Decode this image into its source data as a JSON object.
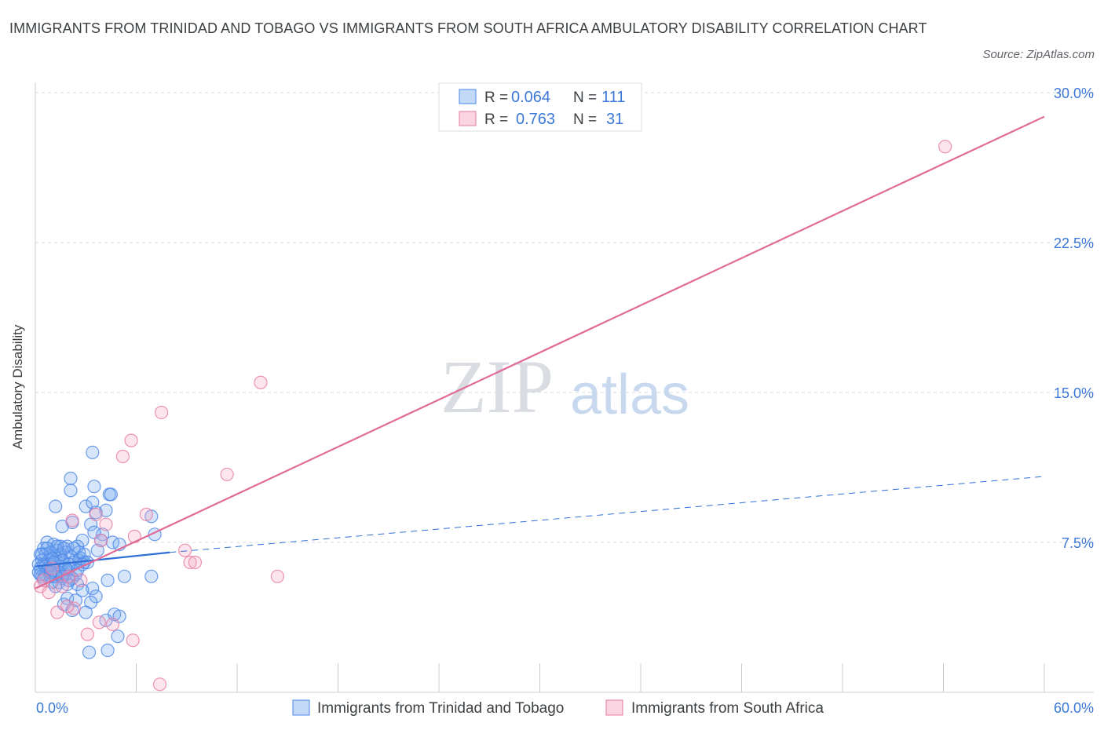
{
  "header": {
    "title": "IMMIGRANTS FROM TRINIDAD AND TOBAGO VS IMMIGRANTS FROM SOUTH AFRICA AMBULATORY DISABILITY CORRELATION CHART",
    "source": "Source: ZipAtlas.com"
  },
  "watermark": {
    "zip": "ZIP",
    "atlas": "atlas"
  },
  "colors": {
    "blue": "#4a86e8",
    "blue_fill": "rgba(120,170,240,0.30)",
    "blue_line": "#2f6fd6",
    "pink": "#e67ba0",
    "pink_fill": "rgba(245,170,195,0.30)",
    "pink_line": "#e06b97",
    "tick_label": "#3c78d8",
    "grid": "#d5d9de"
  },
  "chart_data": {
    "type": "scatter",
    "xlabel": "",
    "ylabel": "Ambulatory Disability",
    "xlim": [
      0,
      60
    ],
    "ylim": [
      0,
      30
    ],
    "x_tick_labels": [
      {
        "v": 0,
        "label": "0.0%"
      },
      {
        "v": 60,
        "label": "60.0%"
      }
    ],
    "x_minor_ticks": [
      6,
      12,
      18,
      24,
      30,
      36,
      42,
      48,
      54,
      60
    ],
    "y_ticks": [
      {
        "v": 7.5,
        "label": "7.5%"
      },
      {
        "v": 15,
        "label": "15.0%"
      },
      {
        "v": 22.5,
        "label": "22.5%"
      },
      {
        "v": 30,
        "label": "30.0%"
      }
    ],
    "legend": {
      "position": "top-center",
      "rows": [
        {
          "r_label": "R =",
          "r_value": "0.064",
          "n_label": "N =",
          "n_value": "111"
        },
        {
          "r_label": "R =",
          "r_value": "0.763",
          "n_label": "N =",
          "n_value": "31"
        }
      ]
    },
    "bottom_legend": [
      "Immigrants from Trinidad and Tobago",
      "Immigrants from South Africa"
    ],
    "series": [
      {
        "name": "Immigrants from Trinidad and Tobago",
        "color": "blue",
        "trend": {
          "solid": [
            [
              0,
              6.3
            ],
            [
              8,
              7.0
            ]
          ],
          "dashed": [
            [
              8,
              7.0
            ],
            [
              60,
              10.8
            ]
          ]
        },
        "points": [
          [
            3.4,
            12.0
          ],
          [
            2.1,
            10.7
          ],
          [
            3.5,
            10.3
          ],
          [
            4.4,
            9.9
          ],
          [
            2.1,
            10.1
          ],
          [
            1.2,
            9.3
          ],
          [
            3.0,
            9.3
          ],
          [
            3.4,
            9.5
          ],
          [
            4.2,
            9.1
          ],
          [
            3.6,
            9.0
          ],
          [
            6.9,
            8.8
          ],
          [
            2.2,
            8.5
          ],
          [
            1.6,
            8.3
          ],
          [
            3.3,
            8.4
          ],
          [
            7.1,
            7.9
          ],
          [
            4.0,
            7.9
          ],
          [
            3.5,
            8.0
          ],
          [
            2.8,
            7.6
          ],
          [
            3.9,
            7.6
          ],
          [
            4.6,
            7.5
          ],
          [
            1.9,
            7.3
          ],
          [
            2.5,
            7.3
          ],
          [
            0.7,
            7.5
          ],
          [
            1.1,
            7.4
          ],
          [
            1.5,
            7.3
          ],
          [
            0.5,
            7.2
          ],
          [
            1.3,
            7.1
          ],
          [
            1.8,
            7.0
          ],
          [
            2.6,
            7.0
          ],
          [
            3.7,
            7.1
          ],
          [
            0.3,
            6.9
          ],
          [
            0.6,
            6.9
          ],
          [
            0.9,
            6.8
          ],
          [
            1.4,
            6.8
          ],
          [
            2.1,
            6.8
          ],
          [
            2.7,
            6.7
          ],
          [
            0.4,
            6.6
          ],
          [
            0.8,
            6.6
          ],
          [
            1.2,
            6.6
          ],
          [
            1.7,
            6.5
          ],
          [
            2.3,
            6.5
          ],
          [
            2.9,
            6.5
          ],
          [
            0.2,
            6.4
          ],
          [
            0.5,
            6.4
          ],
          [
            1.0,
            6.3
          ],
          [
            1.5,
            6.3
          ],
          [
            2.0,
            6.2
          ],
          [
            0.3,
            6.2
          ],
          [
            0.7,
            6.1
          ],
          [
            1.1,
            6.1
          ],
          [
            0.2,
            6.0
          ],
          [
            0.6,
            5.9
          ],
          [
            1.3,
            5.9
          ],
          [
            1.8,
            5.9
          ],
          [
            0.4,
            5.8
          ],
          [
            0.9,
            5.8
          ],
          [
            1.6,
            5.7
          ],
          [
            2.2,
            5.7
          ],
          [
            1.0,
            5.5
          ],
          [
            1.4,
            5.5
          ],
          [
            1.9,
            5.4
          ],
          [
            2.5,
            5.4
          ],
          [
            1.2,
            5.3
          ],
          [
            3.4,
            5.2
          ],
          [
            2.8,
            5.1
          ],
          [
            3.6,
            4.8
          ],
          [
            1.9,
            4.7
          ],
          [
            2.4,
            4.6
          ],
          [
            1.7,
            4.4
          ],
          [
            3.3,
            4.5
          ],
          [
            2.2,
            4.1
          ],
          [
            3.0,
            4.0
          ],
          [
            4.7,
            3.9
          ],
          [
            5.0,
            3.8
          ],
          [
            4.2,
            3.6
          ],
          [
            4.9,
            2.8
          ],
          [
            4.3,
            2.1
          ],
          [
            3.2,
            2.0
          ],
          [
            4.3,
            5.6
          ],
          [
            5.3,
            5.8
          ],
          [
            6.9,
            5.8
          ],
          [
            4.5,
            9.9
          ],
          [
            5.0,
            7.4
          ],
          [
            2.6,
            6.6
          ],
          [
            2.9,
            6.9
          ],
          [
            1.5,
            6.9
          ],
          [
            0.9,
            7.0
          ],
          [
            1.3,
            7.3
          ],
          [
            0.8,
            6.2
          ],
          [
            1.9,
            6.1
          ],
          [
            2.4,
            5.9
          ],
          [
            0.5,
            5.7
          ],
          [
            2.0,
            5.6
          ],
          [
            1.6,
            6.6
          ],
          [
            2.3,
            7.2
          ],
          [
            0.6,
            6.3
          ],
          [
            1.0,
            6.7
          ],
          [
            1.7,
            7.2
          ],
          [
            0.3,
            5.9
          ],
          [
            2.8,
            6.4
          ],
          [
            3.1,
            6.5
          ],
          [
            1.4,
            6.0
          ],
          [
            0.7,
            7.2
          ],
          [
            2.0,
            6.4
          ],
          [
            1.2,
            5.8
          ],
          [
            0.4,
            6.9
          ],
          [
            1.8,
            6.2
          ],
          [
            2.5,
            6.1
          ],
          [
            1.1,
            6.5
          ],
          [
            0.9,
            6.0
          ],
          [
            1.6,
            5.8
          ]
        ]
      },
      {
        "name": "Immigrants from South Africa",
        "color": "pink",
        "trend": {
          "solid": [
            [
              0,
              5.2
            ],
            [
              60,
              28.8
            ]
          ]
        },
        "points": [
          [
            54.1,
            27.3
          ],
          [
            13.4,
            15.5
          ],
          [
            7.5,
            14.0
          ],
          [
            5.7,
            12.6
          ],
          [
            5.2,
            11.8
          ],
          [
            11.4,
            10.9
          ],
          [
            6.6,
            8.9
          ],
          [
            4.2,
            8.4
          ],
          [
            3.6,
            8.9
          ],
          [
            2.2,
            8.6
          ],
          [
            5.9,
            7.8
          ],
          [
            8.9,
            7.1
          ],
          [
            9.2,
            6.5
          ],
          [
            9.5,
            6.5
          ],
          [
            14.4,
            5.8
          ],
          [
            3.9,
            7.6
          ],
          [
            2.0,
            5.8
          ],
          [
            0.3,
            5.3
          ],
          [
            0.8,
            5.0
          ],
          [
            1.6,
            5.3
          ],
          [
            1.3,
            4.0
          ],
          [
            2.3,
            4.2
          ],
          [
            3.1,
            2.9
          ],
          [
            5.8,
            2.6
          ],
          [
            7.4,
            0.4
          ],
          [
            4.6,
            3.4
          ],
          [
            1.9,
            4.3
          ],
          [
            0.5,
            5.6
          ],
          [
            2.7,
            5.6
          ],
          [
            3.8,
            3.5
          ],
          [
            1.0,
            6.2
          ]
        ]
      }
    ]
  }
}
